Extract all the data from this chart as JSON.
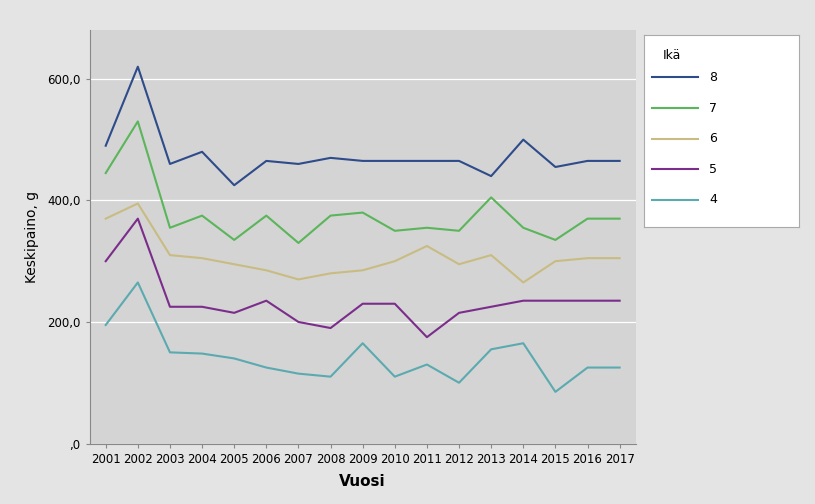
{
  "years": [
    2001,
    2002,
    2003,
    2004,
    2005,
    2006,
    2007,
    2008,
    2009,
    2010,
    2011,
    2012,
    2013,
    2014,
    2015,
    2016,
    2017
  ],
  "series": {
    "8": [
      490,
      620,
      460,
      480,
      425,
      465,
      460,
      470,
      465,
      465,
      465,
      465,
      440,
      500,
      455,
      465,
      465
    ],
    "7": [
      445,
      530,
      355,
      375,
      335,
      375,
      330,
      375,
      380,
      350,
      355,
      350,
      405,
      355,
      335,
      370,
      370
    ],
    "6": [
      370,
      395,
      310,
      305,
      295,
      285,
      270,
      280,
      285,
      300,
      325,
      295,
      310,
      265,
      300,
      305,
      305
    ],
    "5": [
      300,
      370,
      225,
      225,
      215,
      235,
      200,
      190,
      230,
      230,
      175,
      215,
      225,
      235,
      235,
      235,
      235
    ],
    "4": [
      195,
      265,
      150,
      148,
      140,
      125,
      115,
      110,
      165,
      110,
      130,
      100,
      155,
      165,
      85,
      125,
      125
    ]
  },
  "colors": {
    "8": "#2E4B8A",
    "7": "#5BB55A",
    "6": "#C8BC82",
    "5": "#7B2D8B",
    "4": "#5BAAB0"
  },
  "ylabel": "Keskipaino, g",
  "xlabel": "Vuosi",
  "legend_title": "Ikä",
  "ylim": [
    0,
    680
  ],
  "ytick_values": [
    0,
    200,
    400,
    600
  ],
  "ytick_labels": [
    ",0",
    "200,0",
    "400,0",
    "600,0"
  ],
  "plot_bg_color": "#D4D4D4",
  "fig_bg_color": "#E4E4E4",
  "legend_bg_color": "#FFFFFF",
  "line_width": 1.5,
  "axis_fontsize": 10,
  "tick_fontsize": 8.5,
  "legend_fontsize": 9,
  "xlabel_fontsize": 11,
  "ylabel_fontsize": 10
}
